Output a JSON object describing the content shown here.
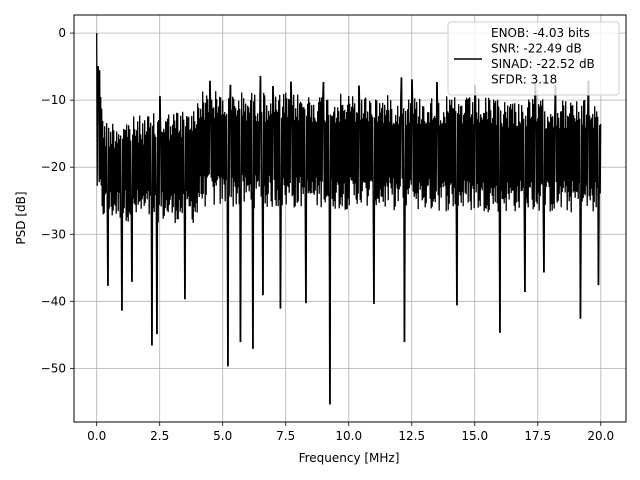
{
  "chart_data": {
    "type": "line",
    "title": "",
    "xlabel": "Frequency [MHz]",
    "ylabel": "PSD [dB]",
    "xlim": [
      -0.9,
      21.0
    ],
    "ylim": [
      -58.0,
      2.7
    ],
    "xticks": [
      0.0,
      2.5,
      5.0,
      7.5,
      10.0,
      12.5,
      15.0,
      17.5,
      20.0
    ],
    "xtick_labels": [
      "0.0",
      "2.5",
      "5.0",
      "7.5",
      "10.0",
      "12.5",
      "15.0",
      "17.5",
      "20.0"
    ],
    "yticks": [
      0,
      -10,
      -20,
      -30,
      -40,
      -50
    ],
    "ytick_labels": [
      "0",
      "−10",
      "−20",
      "−30",
      "−40",
      "−50"
    ],
    "grid": true,
    "legend": {
      "placement": "top-right",
      "entries": [
        "ENOB: -4.03 bits\nSNR: -22.49 dB\nSINAD: -22.52 dB\nSFDR: 3.18"
      ]
    },
    "series": [
      {
        "color": "#000000",
        "x_range": [
          0.0,
          20.0
        ],
        "band": {
          "segments": [
            {
              "x": [
                0.0,
                0.25
              ],
              "upper": [
                0.0,
                -10.0
              ],
              "lower": [
                -24.0,
                -28.0
              ]
            },
            {
              "x": [
                0.25,
                4.0
              ],
              "upper": [
                -13.0,
                -11.0
              ],
              "lower": [
                -28.0,
                -28.5
              ]
            },
            {
              "x": [
                4.0,
                20.0
              ],
              "upper": [
                -8.5,
                -10.0
              ],
              "lower": [
                -26.0,
                -27.0
              ]
            }
          ]
        },
        "spikes_up": [
          [
            0.0,
            0.0
          ],
          [
            0.05,
            -5.0
          ],
          [
            2.5,
            -9.5
          ],
          [
            4.5,
            -7.2
          ],
          [
            5.3,
            -7.8
          ],
          [
            6.5,
            -6.5
          ],
          [
            7.0,
            -8.0
          ],
          [
            7.7,
            -7.3
          ],
          [
            9.0,
            -7.4
          ],
          [
            10.4,
            -7.9
          ],
          [
            12.1,
            -6.7
          ],
          [
            12.5,
            -7.0
          ],
          [
            13.5,
            -7.4
          ],
          [
            15.0,
            -7.8
          ],
          [
            17.4,
            -7.3
          ],
          [
            18.2,
            -7.8
          ],
          [
            19.5,
            -7.2
          ]
        ],
        "spikes_down": [
          [
            0.45,
            -37.6
          ],
          [
            1.0,
            -41.3
          ],
          [
            1.4,
            -37.0
          ],
          [
            2.2,
            -46.5
          ],
          [
            2.4,
            -44.8
          ],
          [
            3.5,
            -39.6
          ],
          [
            5.2,
            -49.6
          ],
          [
            5.7,
            -46.0
          ],
          [
            6.2,
            -47.0
          ],
          [
            6.6,
            -39.0
          ],
          [
            7.3,
            -41.0
          ],
          [
            8.3,
            -40.2
          ],
          [
            9.25,
            -55.3
          ],
          [
            11.0,
            -40.3
          ],
          [
            12.2,
            -46.0
          ],
          [
            14.3,
            -40.5
          ],
          [
            16.0,
            -44.6
          ],
          [
            17.0,
            -38.5
          ],
          [
            17.75,
            -35.6
          ],
          [
            19.2,
            -42.5
          ],
          [
            19.9,
            -37.5
          ]
        ]
      }
    ]
  }
}
